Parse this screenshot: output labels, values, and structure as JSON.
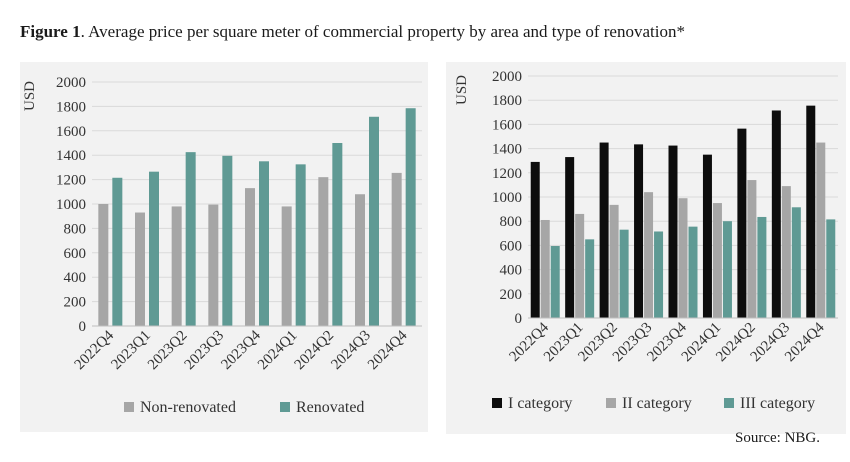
{
  "figure": {
    "label": "Figure 1",
    "title_rest": ". Average price per square meter of commercial property by area and type of renovation*",
    "source": "Source: NBG."
  },
  "colors": {
    "panel_bg": "#f2f2f2",
    "grid": "#d9d9d9",
    "non_renovated": "#a6a6a6",
    "renovated": "#5f9a94",
    "cat1": "#0d0d0d",
    "cat2": "#a6a6a6",
    "cat3": "#5f9a94"
  },
  "chart_data": [
    {
      "type": "bar",
      "title": "",
      "ylabel": "USD",
      "xlabel": "",
      "ylim": [
        0,
        2000
      ],
      "ytick_step": 200,
      "grid": true,
      "legend": "bottom",
      "categories": [
        "2022Q4",
        "2023Q1",
        "2023Q2",
        "2023Q3",
        "2023Q4",
        "2024Q1",
        "2024Q2",
        "2024Q3",
        "2024Q4"
      ],
      "series": [
        {
          "name": "Non-renovated",
          "color_key": "non_renovated",
          "values": [
            1000,
            930,
            980,
            995,
            1130,
            980,
            1220,
            1080,
            1255
          ]
        },
        {
          "name": "Renovated",
          "color_key": "renovated",
          "values": [
            1215,
            1265,
            1425,
            1395,
            1350,
            1325,
            1500,
            1715,
            1785
          ]
        }
      ]
    },
    {
      "type": "bar",
      "title": "",
      "ylabel": "USD",
      "xlabel": "",
      "ylim": [
        0,
        2000
      ],
      "ytick_step": 200,
      "grid": true,
      "legend": "bottom",
      "categories": [
        "2022Q4",
        "2023Q1",
        "2023Q2",
        "2023Q3",
        "2023Q4",
        "2024Q1",
        "2024Q2",
        "2024Q3",
        "2024Q4"
      ],
      "series": [
        {
          "name": "I category",
          "color_key": "cat1",
          "values": [
            1290,
            1330,
            1450,
            1435,
            1425,
            1350,
            1565,
            1715,
            1755
          ]
        },
        {
          "name": "II category",
          "color_key": "cat2",
          "values": [
            810,
            860,
            935,
            1040,
            990,
            950,
            1140,
            1090,
            1450
          ]
        },
        {
          "name": "III category",
          "color_key": "cat3",
          "values": [
            595,
            650,
            730,
            715,
            755,
            800,
            835,
            915,
            815
          ]
        }
      ]
    }
  ]
}
